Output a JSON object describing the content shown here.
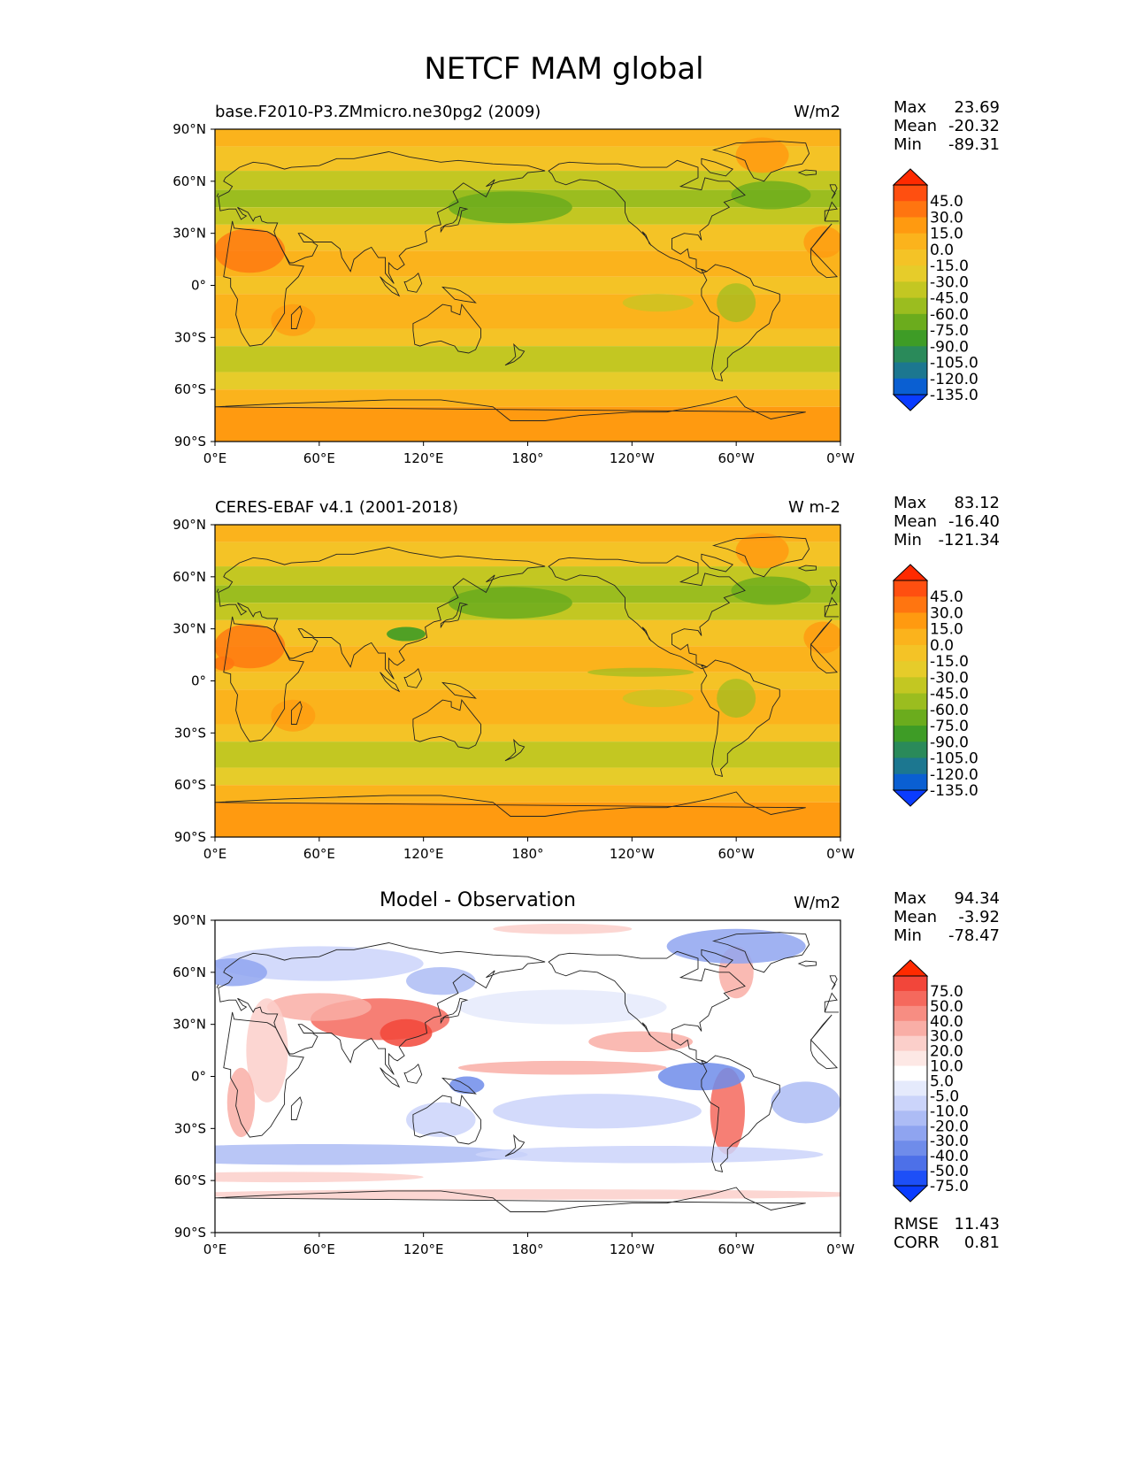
{
  "figure": {
    "title": "NETCF MAM global"
  },
  "panels": [
    {
      "id": "model",
      "title": "base.F2010-P3.ZMmicro.ne30pg2 (2009)",
      "center_title": "",
      "units": "W/m2",
      "stats": {
        "max": "23.69",
        "mean": "-20.32",
        "min": "-89.31"
      }
    },
    {
      "id": "obs",
      "title": "CERES-EBAF v4.1 (2001-2018)",
      "center_title": "",
      "units": "W m-2",
      "stats": {
        "max": "83.12",
        "mean": "-16.40",
        "min": "-121.34"
      }
    },
    {
      "id": "diff",
      "title": "",
      "center_title": "Model - Observation",
      "units": "W/m2",
      "stats": {
        "max": "94.34",
        "mean": "-3.92",
        "min": "-78.47"
      },
      "metrics": {
        "rmse": "11.43",
        "corr": "0.81"
      }
    }
  ],
  "stat_labels": {
    "max": "Max",
    "mean": "Mean",
    "min": "Min",
    "rmse": "RMSE",
    "corr": "CORR"
  },
  "axes": {
    "lat_ticks": [
      "90°N",
      "60°N",
      "30°N",
      "0°",
      "30°S",
      "60°S",
      "90°S"
    ],
    "lon_ticks": [
      "0°E",
      "60°E",
      "120°E",
      "180°",
      "120°W",
      "60°W",
      "0°W"
    ]
  },
  "colorbars": {
    "field": {
      "labels": [
        "45.0",
        "30.0",
        "15.0",
        "0.0",
        "-15.0",
        "-30.0",
        "-45.0",
        "-60.0",
        "-75.0",
        "-90.0",
        "-105.0",
        "-120.0",
        "-135.0"
      ],
      "colors": [
        "#ff2a00",
        "#ff4f10",
        "#ff7510",
        "#ff9a10",
        "#fbb31c",
        "#f4c326",
        "#e6cc2a",
        "#c3c722",
        "#9bbd1f",
        "#6bac1d",
        "#3e9c26",
        "#2a8a5a",
        "#1c7790",
        "#0a5fd2",
        "#0a3cff"
      ]
    },
    "diff": {
      "labels": [
        "75.0",
        "50.0",
        "40.0",
        "30.0",
        "20.0",
        "10.0",
        "5.0",
        "-5.0",
        "-10.0",
        "-20.0",
        "-30.0",
        "-40.0",
        "-50.0",
        "-75.0"
      ],
      "colors": [
        "#ff2a00",
        "#f2463a",
        "#f5695d",
        "#f78d82",
        "#f9aea6",
        "#fbcfca",
        "#fde8e5",
        "#ffffff",
        "#e5eafc",
        "#cbd4fa",
        "#adbcf5",
        "#8fa4f0",
        "#6f8cea",
        "#4d70e8",
        "#1d4ff7",
        "#0a3cff"
      ]
    }
  }
}
